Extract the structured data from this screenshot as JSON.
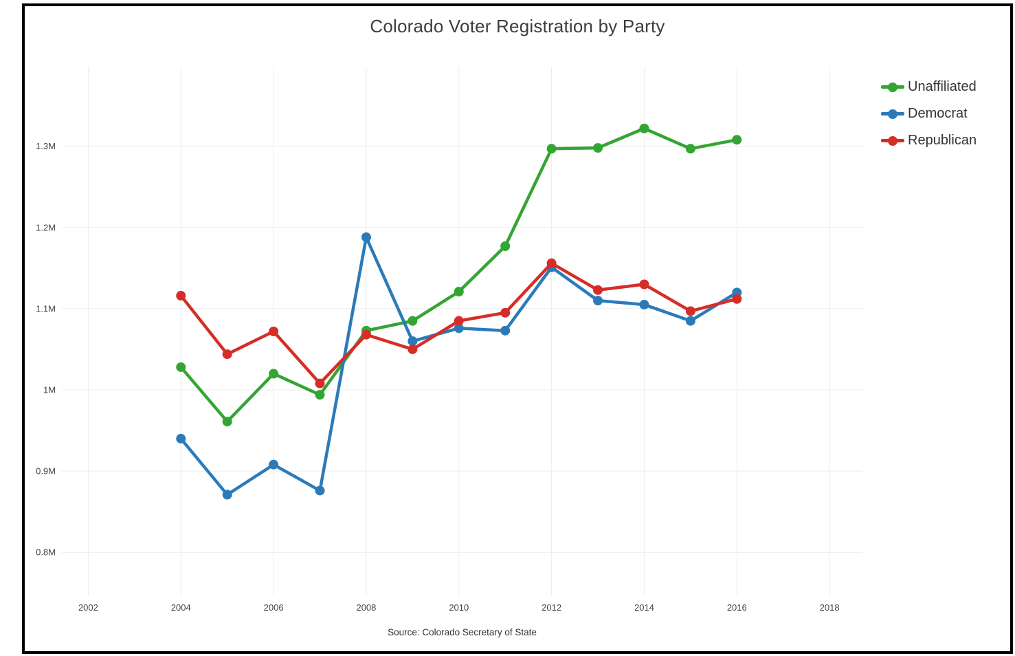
{
  "chart_data": {
    "type": "line",
    "title": "Colorado Voter Registration by Party",
    "source_note": "Source: Colorado Secretary of State",
    "xlabel": "",
    "ylabel": "",
    "unit": "millions of registered voters",
    "x": [
      2004,
      2005,
      2006,
      2007,
      2008,
      2009,
      2010,
      2011,
      2012,
      2013,
      2014,
      2015,
      2016
    ],
    "series": [
      {
        "name": "Unaffiliated",
        "color": "#33a532",
        "values": [
          1.028,
          0.961,
          1.02,
          0.994,
          1.073,
          1.085,
          1.121,
          1.177,
          1.297,
          1.298,
          1.322,
          1.297,
          1.308
        ]
      },
      {
        "name": "Democrat",
        "color": "#2b7bba",
        "values": [
          0.94,
          0.871,
          0.908,
          0.876,
          1.188,
          1.06,
          1.076,
          1.073,
          1.151,
          1.11,
          1.105,
          1.085,
          1.12
        ]
      },
      {
        "name": "Republican",
        "color": "#d62d28",
        "values": [
          1.116,
          1.044,
          1.072,
          1.008,
          1.068,
          1.05,
          1.085,
          1.095,
          1.156,
          1.123,
          1.13,
          1.097,
          1.112
        ]
      }
    ],
    "x_ticks": [
      2002,
      2004,
      2006,
      2008,
      2010,
      2012,
      2014,
      2016,
      2018
    ],
    "y_ticks": [
      {
        "value": 0.8,
        "label": "0.8M"
      },
      {
        "value": 0.9,
        "label": "0.9M"
      },
      {
        "value": 1.0,
        "label": "1M"
      },
      {
        "value": 1.1,
        "label": "1.1M"
      },
      {
        "value": 1.2,
        "label": "1.2M"
      },
      {
        "value": 1.3,
        "label": "1.3M"
      }
    ],
    "xlim": [
      2001.43,
      2018.71
    ],
    "ylim": [
      0.746,
      1.398
    ],
    "grid": true,
    "grid_color": "#ececec",
    "tick_color": "#444444",
    "legend_position": "top-right",
    "line_width": 4.5,
    "marker_radius": 7
  }
}
